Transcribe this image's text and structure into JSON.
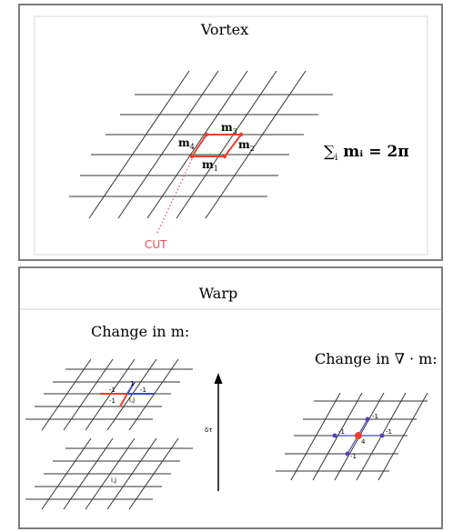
{
  "top_panel": {
    "title": "Vortex",
    "labels": {
      "m1": "m",
      "m1_sub": "1",
      "m2": "m",
      "m2_sub": "2",
      "m3": "m",
      "m3_sub": "3",
      "m4": "m",
      "m4_sub": "4"
    },
    "equation": {
      "sum": "∑",
      "sub": "i",
      "body": " mᵢ = 2π"
    },
    "cut_label": "CUT"
  },
  "bottom_panel": {
    "title": "Warp",
    "change_m": "Change in m:",
    "change_div": "Change in ∇ · m:",
    "delta_tau": "δτ",
    "upper_lattice": {
      "left": "-1",
      "top": "1",
      "bottom_left": "-1",
      "bottom_right": "-1",
      "ij": "i,j"
    },
    "lower_lattice": {
      "ij": "i,j"
    },
    "div_lattice": {
      "center": "4",
      "up": "-1",
      "left": "-1",
      "right": "-1",
      "down": "-1"
    }
  },
  "colors": {
    "red": "#e8402a",
    "blue": "#3a4cc8",
    "purple": "#5a3fc0",
    "grid": "#333333",
    "cut": "#e8505a"
  }
}
